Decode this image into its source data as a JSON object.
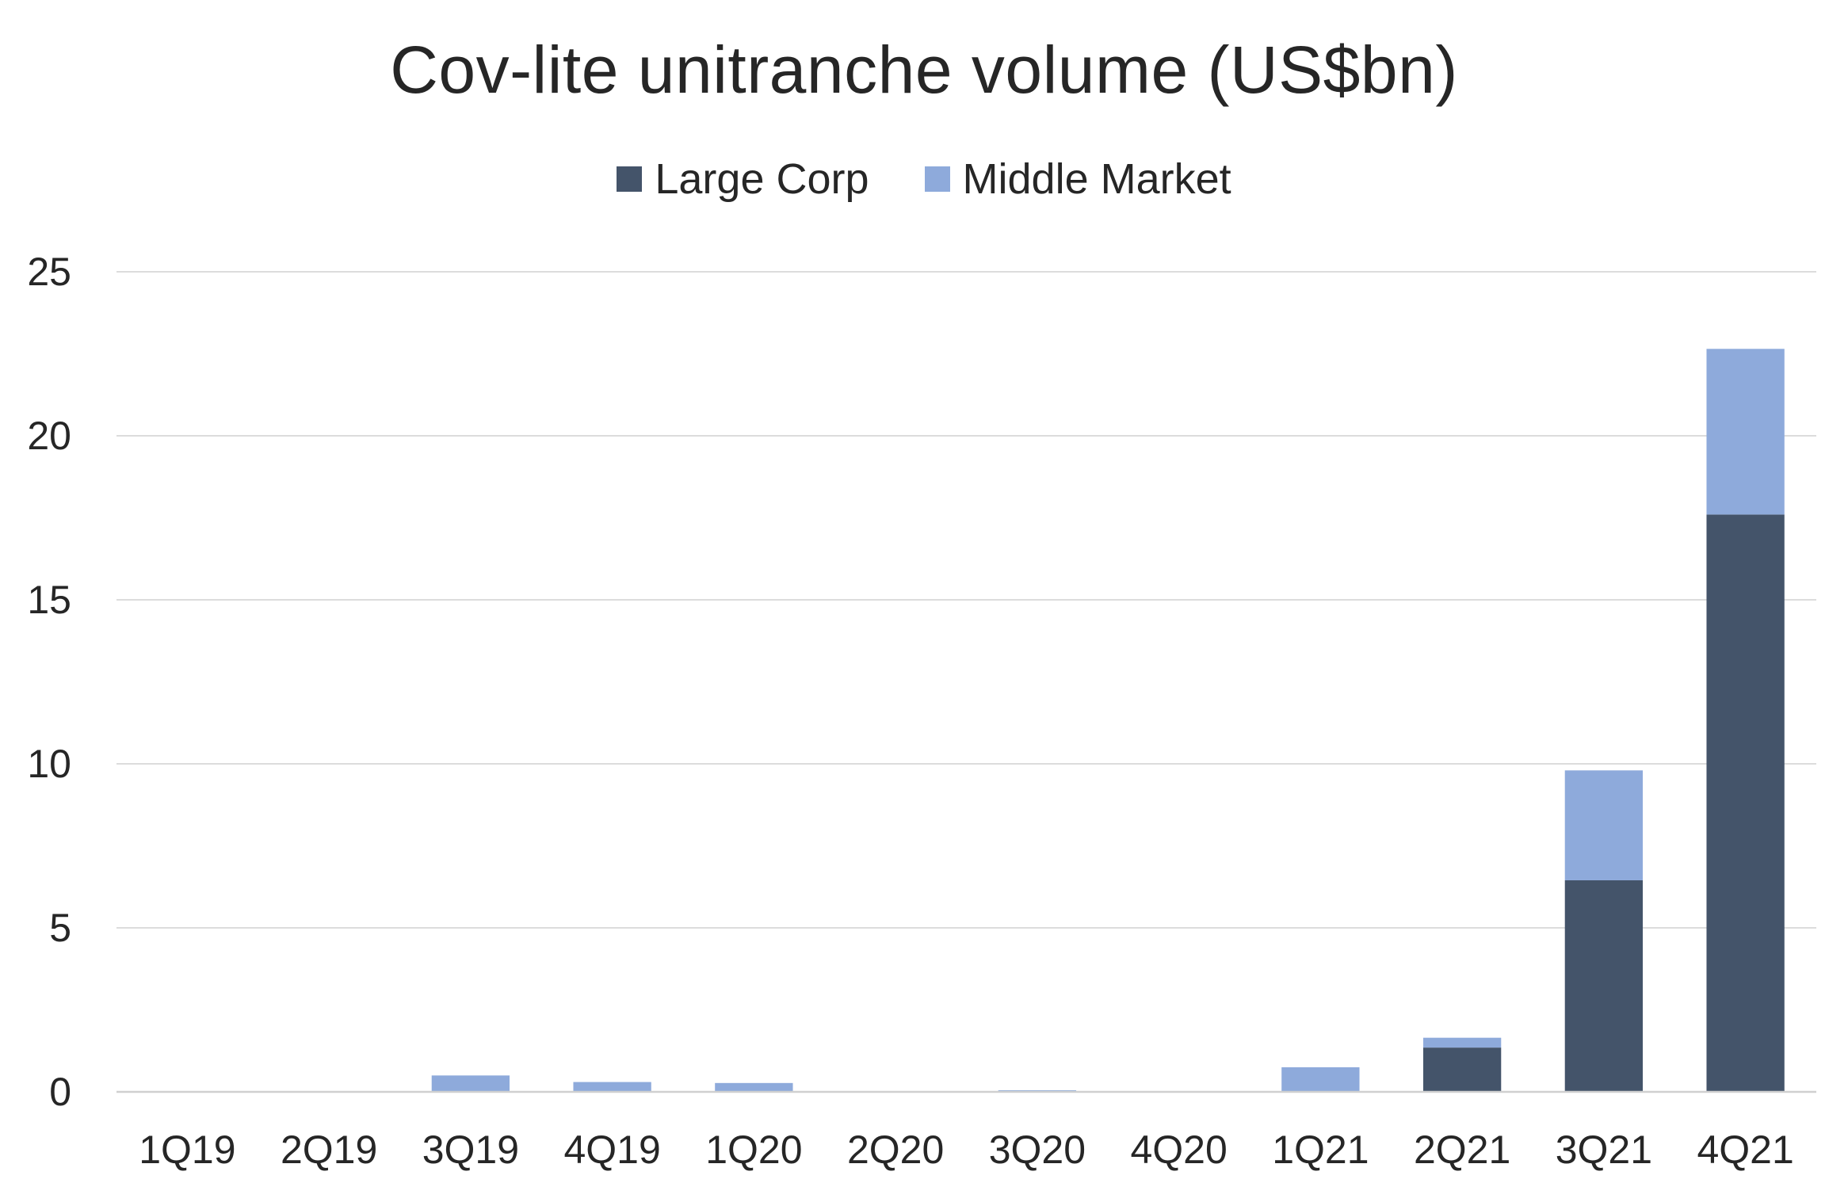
{
  "chart_data": {
    "type": "bar",
    "stacked": true,
    "title": "Cov-lite unitranche volume (US$bn)",
    "xlabel": "",
    "ylabel": "",
    "categories": [
      "1Q19",
      "2Q19",
      "3Q19",
      "4Q19",
      "1Q20",
      "2Q20",
      "3Q20",
      "4Q20",
      "1Q21",
      "2Q21",
      "3Q21",
      "4Q21"
    ],
    "series": [
      {
        "name": "Large Corp",
        "color": "#44546a",
        "values": [
          0,
          0,
          0,
          0,
          0,
          0,
          0,
          0,
          0,
          1.35,
          6.45,
          17.6
        ]
      },
      {
        "name": "Middle Market",
        "color": "#8eaadb",
        "values": [
          0,
          0,
          0.5,
          0.3,
          0.27,
          0,
          0.05,
          0,
          0.75,
          0.3,
          3.35,
          5.05
        ]
      }
    ],
    "ylim": [
      0,
      25
    ],
    "yticks": [
      0,
      5,
      10,
      15,
      20,
      25
    ],
    "grid": true,
    "legend_position": "top-center"
  }
}
